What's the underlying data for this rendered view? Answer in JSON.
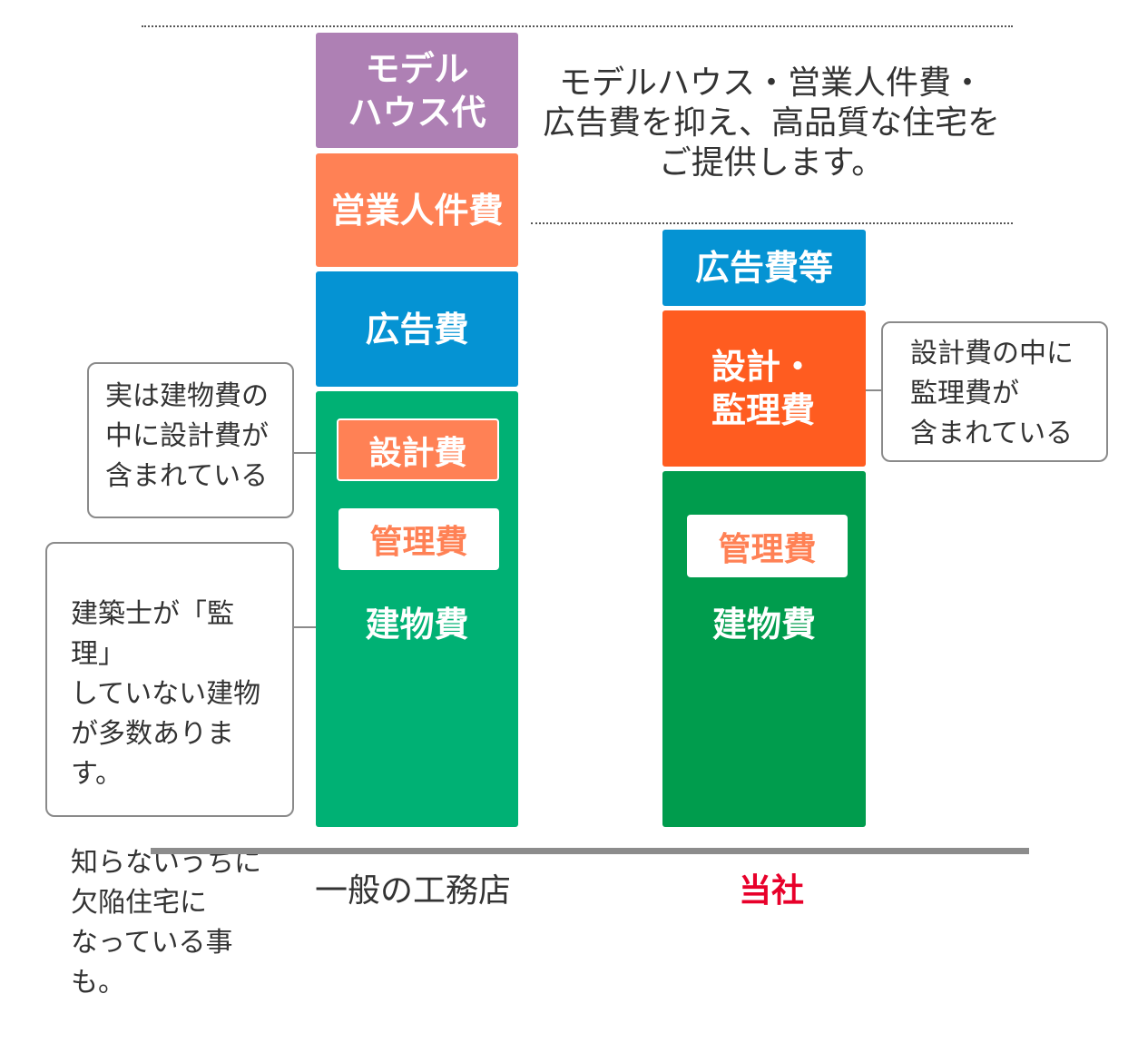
{
  "caption": "モデルハウス・営業人件費・\n広告費を抑え、高品質な住宅を\nご提供します。",
  "general": {
    "label": "一般の工務店",
    "model_house": "モデル\nハウス代",
    "sales_labor": "営業人件費",
    "advertising": "広告費",
    "design_fee": "設計費",
    "management_fee": "管理費",
    "building_cost": "建物費"
  },
  "ours": {
    "label": "当社",
    "advertising": "広告費等",
    "design_supervision": "設計・\n監理費",
    "management_fee": "管理費",
    "building_cost": "建物費"
  },
  "callouts": {
    "left_top": "実は建物費の\n中に設計費が\n含まれている",
    "left_bottom_1": "建築士が「監理」\nしていない建物\nが多数あります。",
    "left_bottom_2": "知らないうちに\n欠陥住宅に\nなっている事も。",
    "right": "設計費の中に\n監理費が\n含まれている"
  },
  "colors": {
    "model_house": "#ae80b4",
    "sales_labor": "#ff8155",
    "advertising": "#0593d3",
    "building_general": "#00b174",
    "design_supervision": "#ff5c20",
    "building_ours": "#009c4d",
    "our_label": "#e8002a"
  }
}
